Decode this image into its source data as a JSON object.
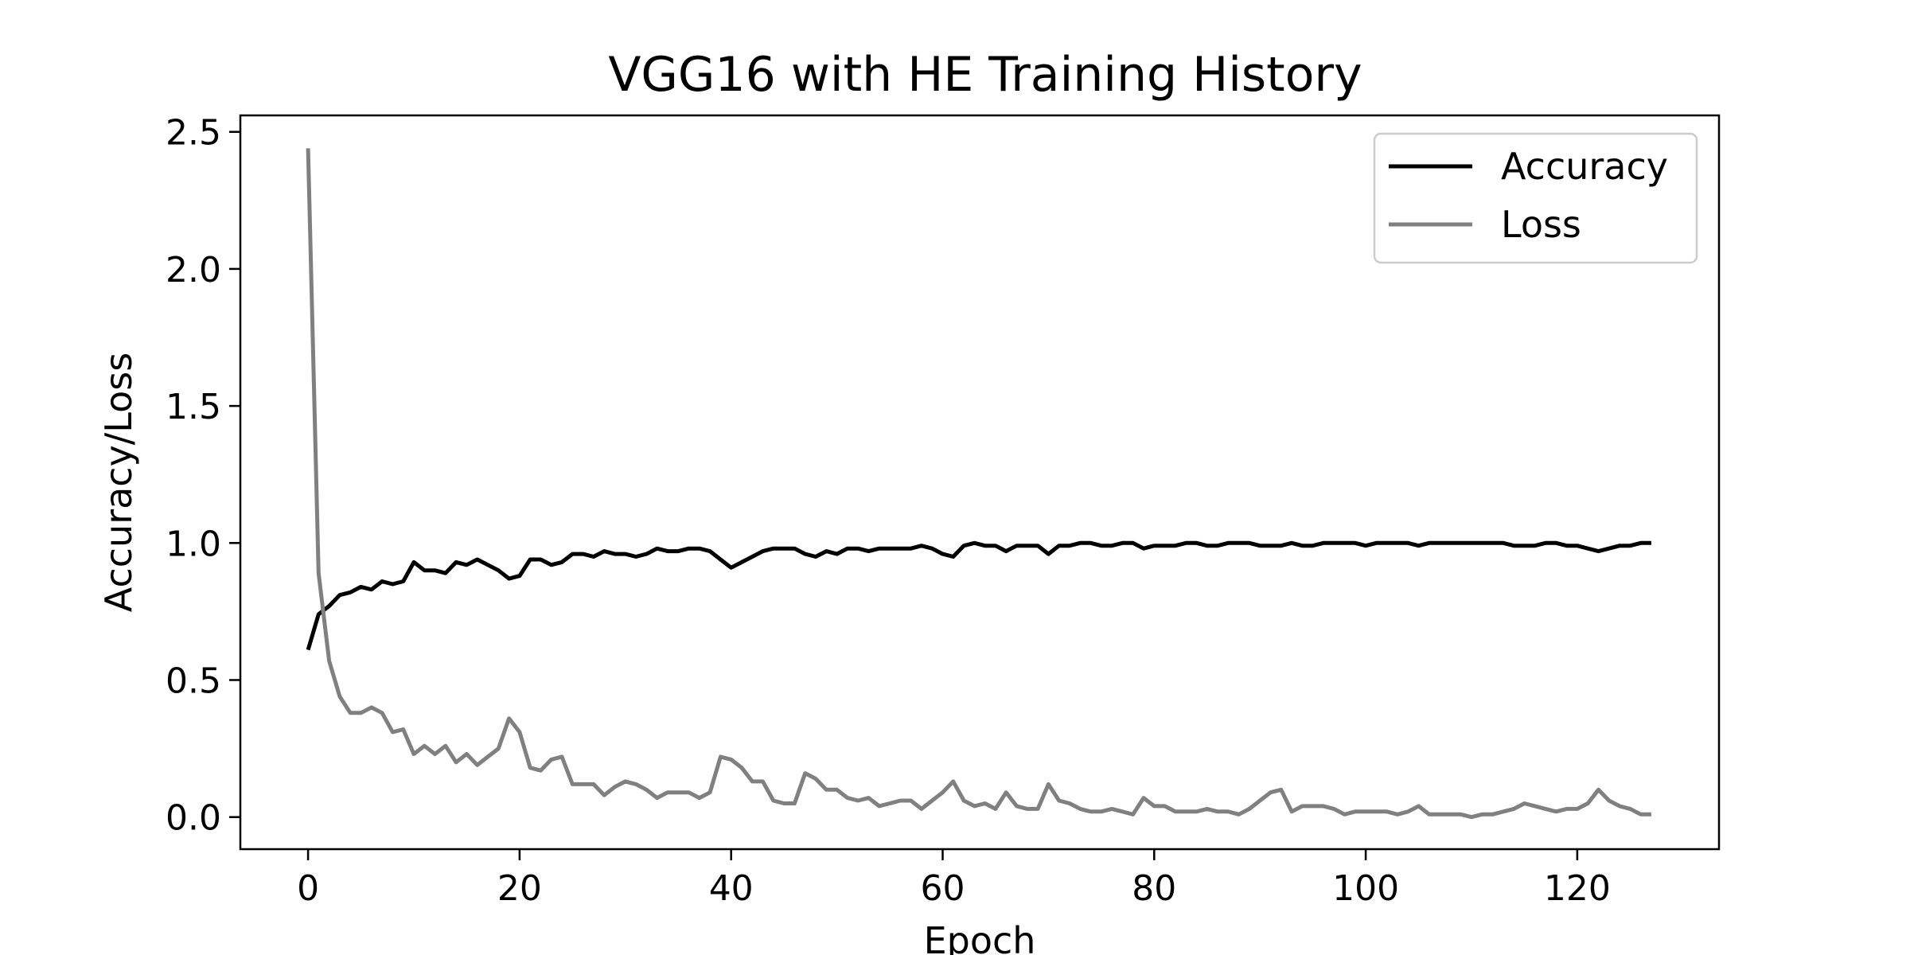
{
  "chart_data": {
    "type": "line",
    "title": "VGG16 with HE Training History",
    "xlabel": "Epoch",
    "ylabel": "Accuracy/Loss",
    "xlim": [
      -6.4,
      133.4
    ],
    "ylim": [
      -0.117,
      2.56
    ],
    "xticks": [
      0,
      20,
      40,
      60,
      80,
      100,
      120
    ],
    "yticks": [
      0.0,
      0.5,
      1.0,
      1.5,
      2.0,
      2.5
    ],
    "xtick_labels": [
      "0",
      "20",
      "40",
      "60",
      "80",
      "100",
      "120"
    ],
    "ytick_labels": [
      "0.0",
      "0.5",
      "1.0",
      "1.5",
      "2.0",
      "2.5"
    ],
    "grid": false,
    "legend_position": "top-right",
    "x": [
      0,
      1,
      2,
      3,
      4,
      5,
      6,
      7,
      8,
      9,
      10,
      11,
      12,
      13,
      14,
      15,
      16,
      17,
      18,
      19,
      20,
      21,
      22,
      23,
      24,
      25,
      26,
      27,
      28,
      29,
      30,
      31,
      32,
      33,
      34,
      35,
      36,
      37,
      38,
      39,
      40,
      41,
      42,
      43,
      44,
      45,
      46,
      47,
      48,
      49,
      50,
      51,
      52,
      53,
      54,
      55,
      56,
      57,
      58,
      59,
      60,
      61,
      62,
      63,
      64,
      65,
      66,
      67,
      68,
      69,
      70,
      71,
      72,
      73,
      74,
      75,
      76,
      77,
      78,
      79,
      80,
      81,
      82,
      83,
      84,
      85,
      86,
      87,
      88,
      89,
      90,
      91,
      92,
      93,
      94,
      95,
      96,
      97,
      98,
      99,
      100,
      101,
      102,
      103,
      104,
      105,
      106,
      107,
      108,
      109,
      110,
      111,
      112,
      113,
      114,
      115,
      116,
      117,
      118,
      119,
      120,
      121,
      122,
      123,
      124,
      125,
      126,
      127
    ],
    "series": [
      {
        "name": "Accuracy",
        "color": "#000000",
        "values": [
          0.61,
          0.74,
          0.77,
          0.81,
          0.82,
          0.84,
          0.83,
          0.86,
          0.85,
          0.86,
          0.93,
          0.9,
          0.9,
          0.89,
          0.93,
          0.92,
          0.94,
          0.92,
          0.9,
          0.87,
          0.88,
          0.94,
          0.94,
          0.92,
          0.93,
          0.96,
          0.96,
          0.95,
          0.97,
          0.96,
          0.96,
          0.95,
          0.96,
          0.98,
          0.97,
          0.97,
          0.98,
          0.98,
          0.97,
          0.94,
          0.91,
          0.93,
          0.95,
          0.97,
          0.98,
          0.98,
          0.98,
          0.96,
          0.95,
          0.97,
          0.96,
          0.98,
          0.98,
          0.97,
          0.98,
          0.98,
          0.98,
          0.98,
          0.99,
          0.98,
          0.96,
          0.95,
          0.99,
          1.0,
          0.99,
          0.99,
          0.97,
          0.99,
          0.99,
          0.99,
          0.96,
          0.99,
          0.99,
          1.0,
          1.0,
          0.99,
          0.99,
          1.0,
          1.0,
          0.98,
          0.99,
          0.99,
          0.99,
          1.0,
          1.0,
          0.99,
          0.99,
          1.0,
          1.0,
          1.0,
          0.99,
          0.99,
          0.99,
          1.0,
          0.99,
          0.99,
          1.0,
          1.0,
          1.0,
          1.0,
          0.99,
          1.0,
          1.0,
          1.0,
          1.0,
          0.99,
          1.0,
          1.0,
          1.0,
          1.0,
          1.0,
          1.0,
          1.0,
          1.0,
          0.99,
          0.99,
          0.99,
          1.0,
          1.0,
          0.99,
          0.99,
          0.98,
          0.97,
          0.98,
          0.99,
          0.99,
          1.0,
          1.0
        ]
      },
      {
        "name": "Loss",
        "color": "#808080",
        "values": [
          2.44,
          0.89,
          0.57,
          0.44,
          0.38,
          0.38,
          0.4,
          0.38,
          0.31,
          0.32,
          0.23,
          0.26,
          0.23,
          0.26,
          0.2,
          0.23,
          0.19,
          0.22,
          0.25,
          0.36,
          0.31,
          0.18,
          0.17,
          0.21,
          0.22,
          0.12,
          0.12,
          0.12,
          0.08,
          0.11,
          0.13,
          0.12,
          0.1,
          0.07,
          0.09,
          0.09,
          0.09,
          0.07,
          0.09,
          0.22,
          0.21,
          0.18,
          0.13,
          0.13,
          0.06,
          0.05,
          0.05,
          0.16,
          0.14,
          0.1,
          0.1,
          0.07,
          0.06,
          0.07,
          0.04,
          0.05,
          0.06,
          0.06,
          0.03,
          0.06,
          0.09,
          0.13,
          0.06,
          0.04,
          0.05,
          0.03,
          0.09,
          0.04,
          0.03,
          0.03,
          0.12,
          0.06,
          0.05,
          0.03,
          0.02,
          0.02,
          0.03,
          0.02,
          0.01,
          0.07,
          0.04,
          0.04,
          0.02,
          0.02,
          0.02,
          0.03,
          0.02,
          0.02,
          0.01,
          0.03,
          0.06,
          0.09,
          0.1,
          0.02,
          0.04,
          0.04,
          0.04,
          0.03,
          0.01,
          0.02,
          0.02,
          0.02,
          0.02,
          0.01,
          0.02,
          0.04,
          0.01,
          0.01,
          0.01,
          0.01,
          0.0,
          0.01,
          0.01,
          0.02,
          0.03,
          0.05,
          0.04,
          0.03,
          0.02,
          0.03,
          0.03,
          0.05,
          0.1,
          0.06,
          0.04,
          0.03,
          0.01,
          0.01
        ]
      }
    ]
  }
}
